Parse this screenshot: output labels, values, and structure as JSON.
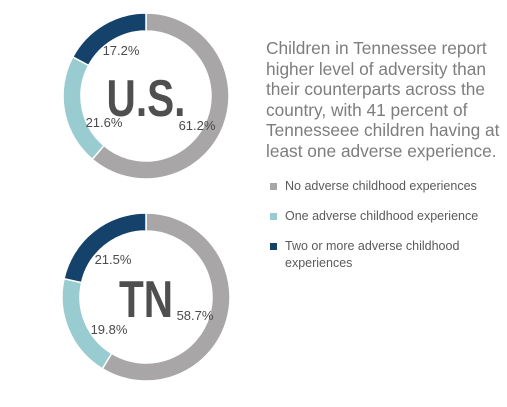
{
  "summary_text": "Children in Tennessee report higher level of adversity than their counterparts across the country, with 41 percent of Tennesseee children having at least one adverse experience.",
  "legend": [
    {
      "label": "No adverse childhood experiences",
      "color": "#a8a6a6"
    },
    {
      "label": "One adverse childhood experience",
      "color": "#99ccd0"
    },
    {
      "label": "Two or more adverse childhood experiences",
      "color": "#15426a"
    }
  ],
  "chart_data": [
    {
      "type": "pie",
      "title": "U.S.",
      "categories": [
        "No adverse childhood experiences",
        "One adverse childhood experience",
        "Two or more adverse childhood experiences"
      ],
      "values": [
        61.2,
        21.6,
        17.2
      ],
      "labels": [
        "61.2%",
        "21.6%",
        "17.2%"
      ],
      "colors": [
        "#a8a6a6",
        "#99ccd0",
        "#15426a"
      ]
    },
    {
      "type": "pie",
      "title": "TN",
      "categories": [
        "No adverse childhood experiences",
        "One adverse childhood experience",
        "Two or more adverse childhood experiences"
      ],
      "values": [
        58.7,
        19.8,
        21.5
      ],
      "labels": [
        "58.7%",
        "19.8%",
        "21.5%"
      ],
      "colors": [
        "#a8a6a6",
        "#99ccd0",
        "#15426a"
      ]
    }
  ]
}
